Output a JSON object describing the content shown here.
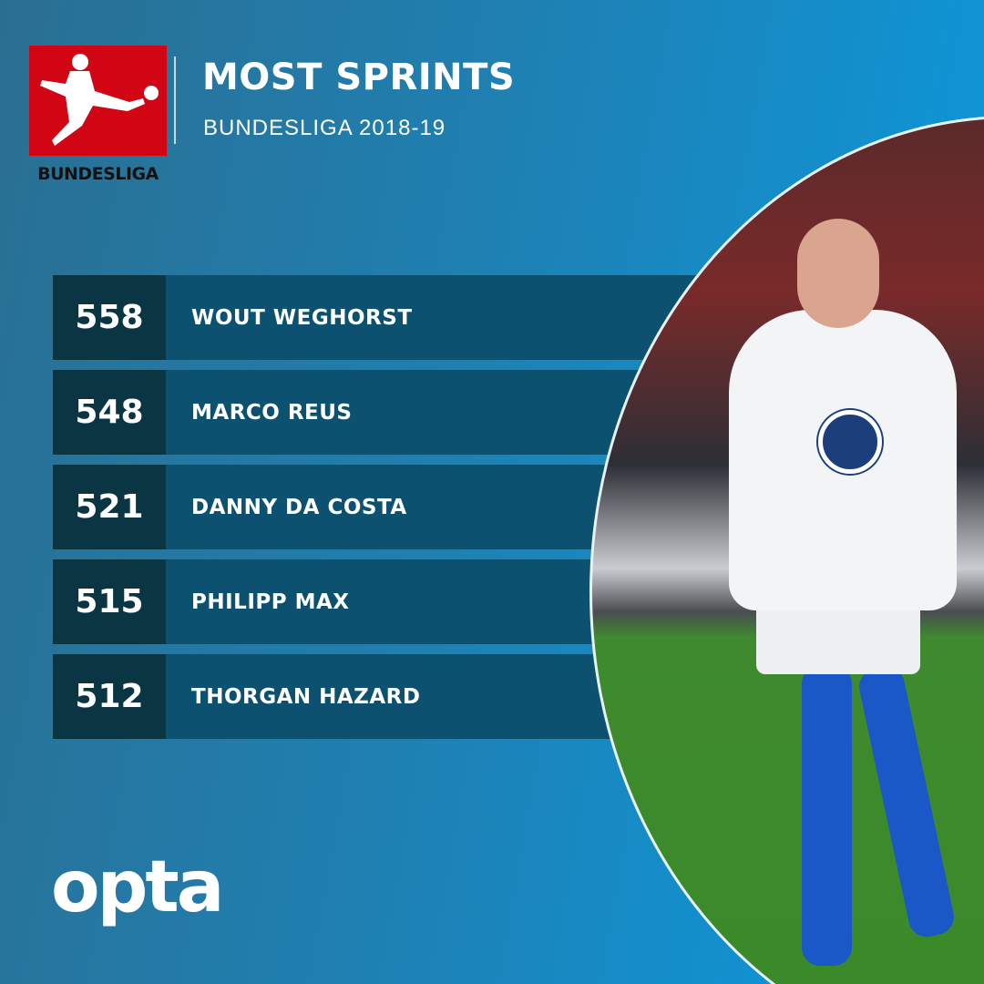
{
  "header": {
    "title": "MOST SPRINTS",
    "subtitle": "BUNDESLIGA 2018-19"
  },
  "logo": {
    "wordmark": "BUNDESLIGA",
    "color": "#d20515"
  },
  "rankings": [
    {
      "value": "558",
      "player": "WOUT WEGHORST"
    },
    {
      "value": "548",
      "player": "MARCO REUS"
    },
    {
      "value": "521",
      "player": "DANNY DA COSTA"
    },
    {
      "value": "515",
      "player": "PHILIPP MAX"
    },
    {
      "value": "512",
      "player": "THORGAN HAZARD"
    }
  ],
  "footer": {
    "brand": "opta"
  },
  "colors": {
    "background_left": "#2a6f92",
    "background_right": "#0a9be0",
    "value_cell": "#0a3644",
    "name_cell": "#0d5170"
  }
}
